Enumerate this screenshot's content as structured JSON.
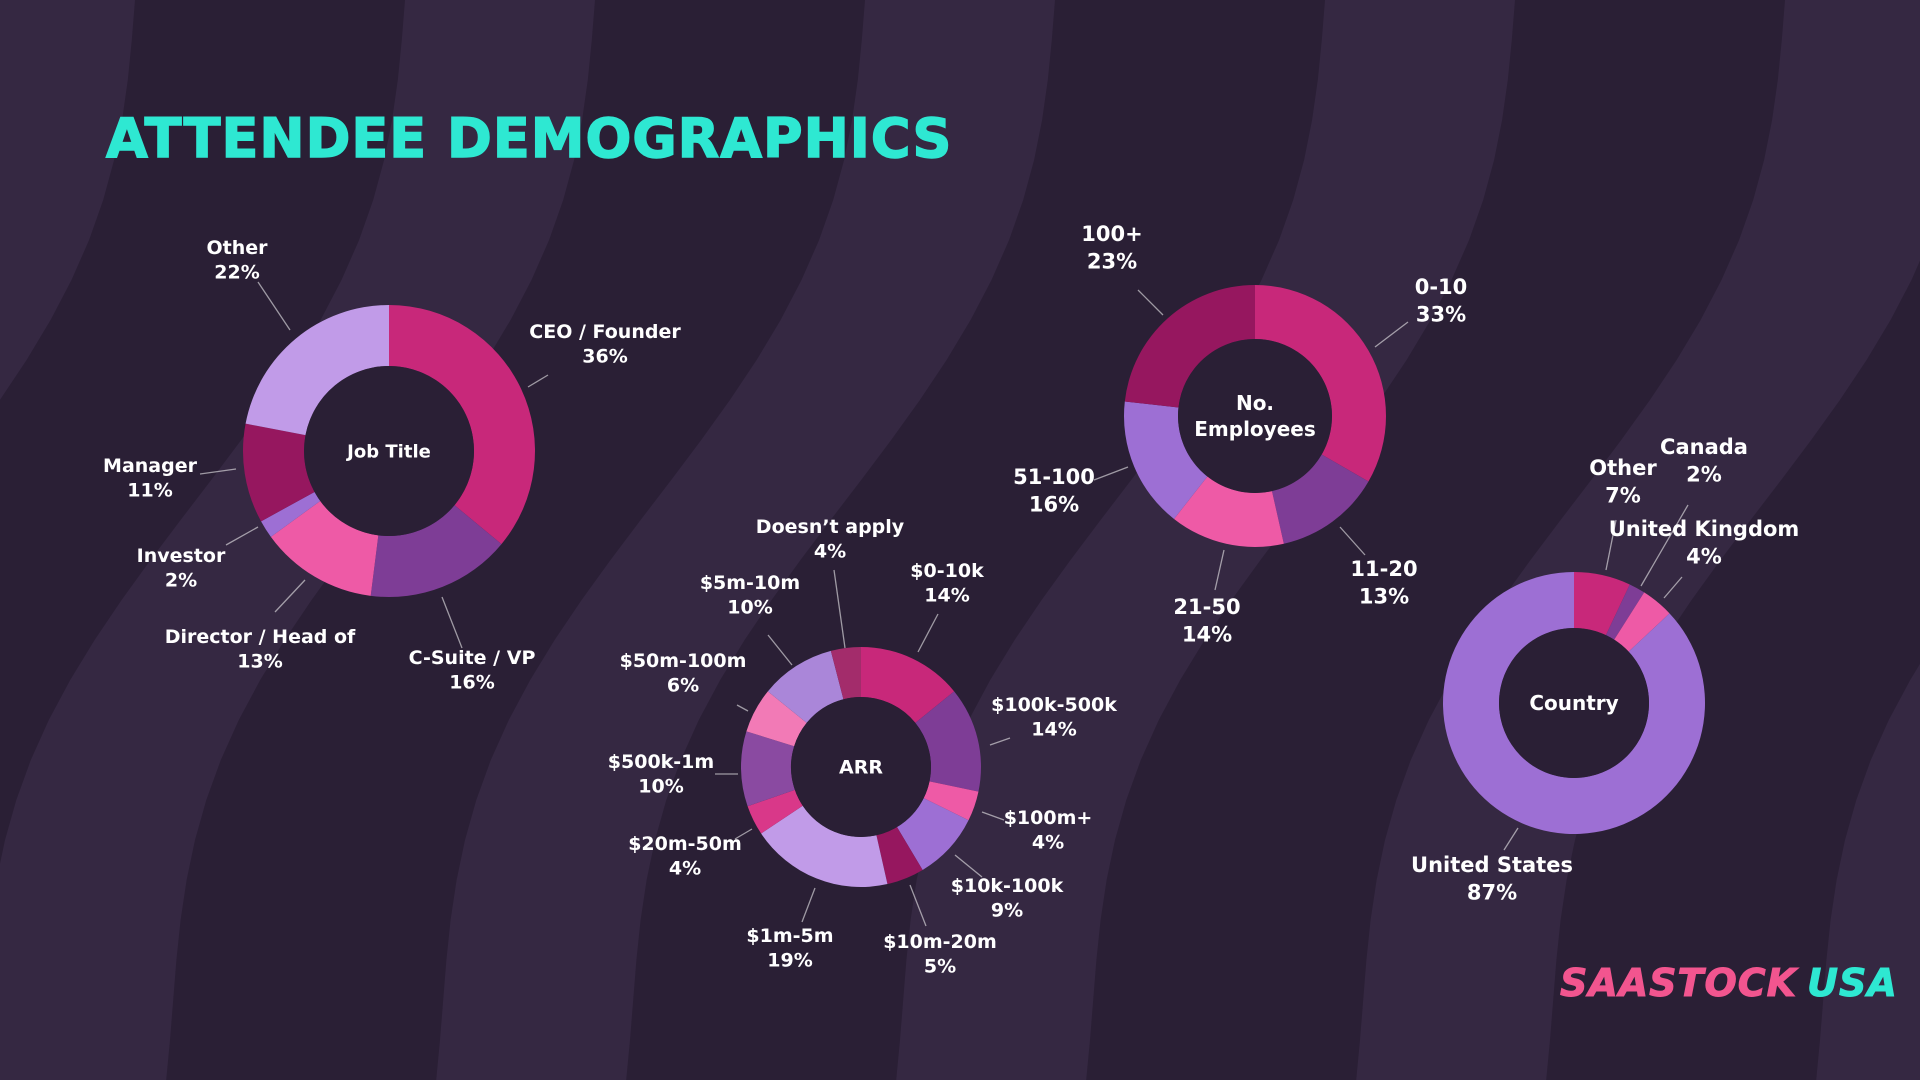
{
  "title": "ATTENDEE DEMOGRAPHICS",
  "logo": {
    "primary": "SAASTOCK",
    "secondary": "USA",
    "primary_color": "#f2558f",
    "secondary_color": "#2ee8d2"
  },
  "colors": {
    "background": "#2a1f35",
    "background_wave": "#352842",
    "title": "#2ee8d2",
    "text": "#ffffff",
    "center_fill": "#2a1f35"
  },
  "chart_data": [
    {
      "type": "pie",
      "center_label": "Job Title",
      "slices": [
        {
          "label": "CEO / Founder",
          "value": 36,
          "display": "36%",
          "color": "#c8287a"
        },
        {
          "label": "C-Suite / VP",
          "value": 16,
          "display": "16%",
          "color": "#7e3d96"
        },
        {
          "label": "Director / Head of",
          "value": 13,
          "display": "13%",
          "color": "#ee5aa6"
        },
        {
          "label": "Investor",
          "value": 2,
          "display": "2%",
          "color": "#9d6fd4"
        },
        {
          "label": "Manager",
          "value": 11,
          "display": "11%",
          "color": "#96175f"
        },
        {
          "label": "Other",
          "value": 22,
          "display": "22%",
          "color": "#c19be8"
        }
      ]
    },
    {
      "type": "pie",
      "center_label": "ARR",
      "slices": [
        {
          "label": "$0-10k",
          "value": 14,
          "display": "14%",
          "color": "#c8287a"
        },
        {
          "label": "$100k-500k",
          "value": 14,
          "display": "14%",
          "color": "#7e3d96"
        },
        {
          "label": "$100m+",
          "value": 4,
          "display": "4%",
          "color": "#ee5aa6"
        },
        {
          "label": "$10k-100k",
          "value": 9,
          "display": "9%",
          "color": "#9d6fd4"
        },
        {
          "label": "$10m-20m",
          "value": 5,
          "display": "5%",
          "color": "#96175f"
        },
        {
          "label": "$1m-5m",
          "value": 19,
          "display": "19%",
          "color": "#c19be8"
        },
        {
          "label": "$20m-50m",
          "value": 4,
          "display": "4%",
          "color": "#d93889"
        },
        {
          "label": "$500k-1m",
          "value": 10,
          "display": "10%",
          "color": "#8a4aa1"
        },
        {
          "label": "$50m-100m",
          "value": 6,
          "display": "6%",
          "color": "#f27ab6"
        },
        {
          "label": "$5m-10m",
          "value": 10,
          "display": "10%",
          "color": "#aa86d9"
        },
        {
          "label": "Doesn’t apply",
          "value": 4,
          "display": "4%",
          "color": "#a32c6b"
        }
      ]
    },
    {
      "type": "pie",
      "center_label": "No. Employees",
      "center_lines": [
        "No.",
        "Employees"
      ],
      "slices": [
        {
          "label": "0-10",
          "value": 33,
          "display": "33%",
          "color": "#c8287a"
        },
        {
          "label": "11-20",
          "value": 13,
          "display": "13%",
          "color": "#7e3d96"
        },
        {
          "label": "21-50",
          "value": 14,
          "display": "14%",
          "color": "#ee5aa6"
        },
        {
          "label": "51-100",
          "value": 16,
          "display": "16%",
          "color": "#9d6fd4"
        },
        {
          "label": "100+",
          "value": 23,
          "display": "23%",
          "color": "#96175f"
        }
      ]
    },
    {
      "type": "pie",
      "center_label": "Country",
      "slices": [
        {
          "label": "Other",
          "value": 7,
          "display": "7%",
          "color": "#c8287a"
        },
        {
          "label": "Canada",
          "value": 2,
          "display": "2%",
          "color": "#7e3d96"
        },
        {
          "label": "United Kingdom",
          "value": 4,
          "display": "4%",
          "color": "#ee5aa6"
        },
        {
          "label": "United States",
          "value": 87,
          "display": "87%",
          "color": "#9d6fd4"
        }
      ]
    }
  ]
}
